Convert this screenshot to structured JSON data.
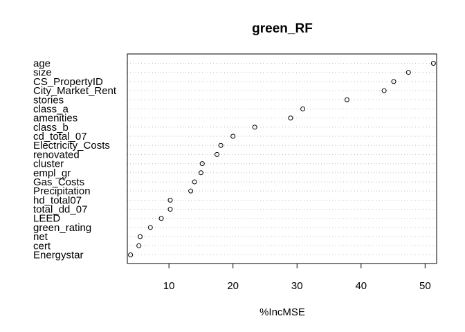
{
  "chart_data": {
    "type": "scatter",
    "title": "green_RF",
    "xlabel": "%IncMSE",
    "ylabel": "",
    "xlim": [
      3.5,
      51.8
    ],
    "xticks": [
      10,
      20,
      30,
      40,
      50
    ],
    "grid": "dotted horizontal lines per variable",
    "variables": [
      {
        "name": "age",
        "value": 51.3
      },
      {
        "name": "size",
        "value": 47.4
      },
      {
        "name": "CS_PropertyID",
        "value": 45.1
      },
      {
        "name": "City_Market_Rent",
        "value": 43.6
      },
      {
        "name": "stories",
        "value": 37.8
      },
      {
        "name": "class_a",
        "value": 30.9
      },
      {
        "name": "amenities",
        "value": 29.0
      },
      {
        "name": "class_b",
        "value": 23.4
      },
      {
        "name": "cd_total_07",
        "value": 20.0
      },
      {
        "name": "Electricity_Costs",
        "value": 18.1
      },
      {
        "name": "renovated",
        "value": 17.5
      },
      {
        "name": "cluster",
        "value": 15.2
      },
      {
        "name": "empl_gr",
        "value": 15.0
      },
      {
        "name": "Gas_Costs",
        "value": 14.0
      },
      {
        "name": "Precipitation",
        "value": 13.4
      },
      {
        "name": "hd_total07",
        "value": 10.2
      },
      {
        "name": "total_dd_07",
        "value": 10.2
      },
      {
        "name": "LEED",
        "value": 8.8
      },
      {
        "name": "green_rating",
        "value": 7.1
      },
      {
        "name": "net",
        "value": 5.5
      },
      {
        "name": "cert",
        "value": 5.3
      },
      {
        "name": "Energystar",
        "value": 4.0
      }
    ]
  }
}
